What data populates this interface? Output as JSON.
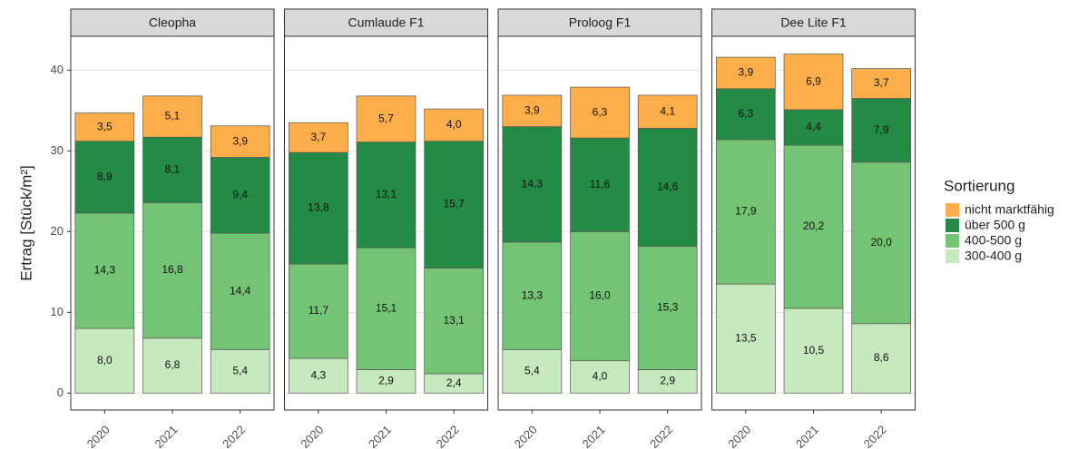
{
  "chart_data": {
    "type": "bar",
    "stacked": true,
    "ylabel": "Ertrag [Stück/m²]",
    "legend_title": "Sortierung",
    "ylim": [
      -2.1,
      44.2
    ],
    "yticks": [
      0,
      10,
      20,
      30,
      40
    ],
    "grid": true,
    "series": [
      {
        "name": "300-400 g",
        "color": "#c7e9c0"
      },
      {
        "name": "400-500 g",
        "color": "#74c476"
      },
      {
        "name": "über 500 g",
        "color": "#238b45"
      },
      {
        "name": "nicht marktfähig",
        "color": "#fdae4b"
      }
    ],
    "facets": [
      {
        "title": "Cleopha",
        "categories": [
          "2020",
          "2021",
          "2022"
        ],
        "series": [
          {
            "values": [
              8.0,
              6.8,
              5.4
            ],
            "value_labels": [
              "8,0",
              "6,8",
              "5,4"
            ]
          },
          {
            "values": [
              14.3,
              16.8,
              14.4
            ],
            "value_labels": [
              "14,3",
              "16,8",
              "14,4"
            ]
          },
          {
            "values": [
              8.9,
              8.1,
              9.4
            ],
            "value_labels": [
              "8,9",
              "8,1",
              "9,4"
            ]
          },
          {
            "values": [
              3.5,
              5.1,
              3.9
            ],
            "value_labels": [
              "3,5",
              "5,1",
              "3,9"
            ]
          }
        ]
      },
      {
        "title": "Cumlaude F1",
        "categories": [
          "2020",
          "2021",
          "2022"
        ],
        "series": [
          {
            "values": [
              4.3,
              2.9,
              2.4
            ],
            "value_labels": [
              "4,3",
              "2,9",
              "2,4"
            ]
          },
          {
            "values": [
              11.7,
              15.1,
              13.1
            ],
            "value_labels": [
              "11,7",
              "15,1",
              "13,1"
            ]
          },
          {
            "values": [
              13.8,
              13.1,
              15.7
            ],
            "value_labels": [
              "13,8",
              "13,1",
              "15,7"
            ]
          },
          {
            "values": [
              3.7,
              5.7,
              4.0
            ],
            "value_labels": [
              "3,7",
              "5,7",
              "4,0"
            ]
          }
        ]
      },
      {
        "title": "Proloog F1",
        "categories": [
          "2020",
          "2021",
          "2022"
        ],
        "series": [
          {
            "values": [
              5.4,
              4.0,
              2.9
            ],
            "value_labels": [
              "5,4",
              "4,0",
              "2,9"
            ]
          },
          {
            "values": [
              13.3,
              16.0,
              15.3
            ],
            "value_labels": [
              "13,3",
              "16,0",
              "15,3"
            ]
          },
          {
            "values": [
              14.3,
              11.6,
              14.6
            ],
            "value_labels": [
              "14,3",
              "11,6",
              "14,6"
            ]
          },
          {
            "values": [
              3.9,
              6.3,
              4.1
            ],
            "value_labels": [
              "3,9",
              "6,3",
              "4,1"
            ]
          }
        ]
      },
      {
        "title": "Dee Lite F1",
        "categories": [
          "2020",
          "2021",
          "2022"
        ],
        "series": [
          {
            "values": [
              13.5,
              10.5,
              8.6
            ],
            "value_labels": [
              "13,5",
              "10,5",
              "8,6"
            ]
          },
          {
            "values": [
              17.9,
              20.2,
              20.0
            ],
            "value_labels": [
              "17,9",
              "20,2",
              "20,0"
            ]
          },
          {
            "values": [
              6.3,
              4.4,
              7.9
            ],
            "value_labels": [
              "6,3",
              "4,4",
              "7,9"
            ]
          },
          {
            "values": [
              3.9,
              6.9,
              3.7
            ],
            "value_labels": [
              "3,9",
              "6,9",
              "3,7"
            ]
          }
        ]
      }
    ]
  }
}
